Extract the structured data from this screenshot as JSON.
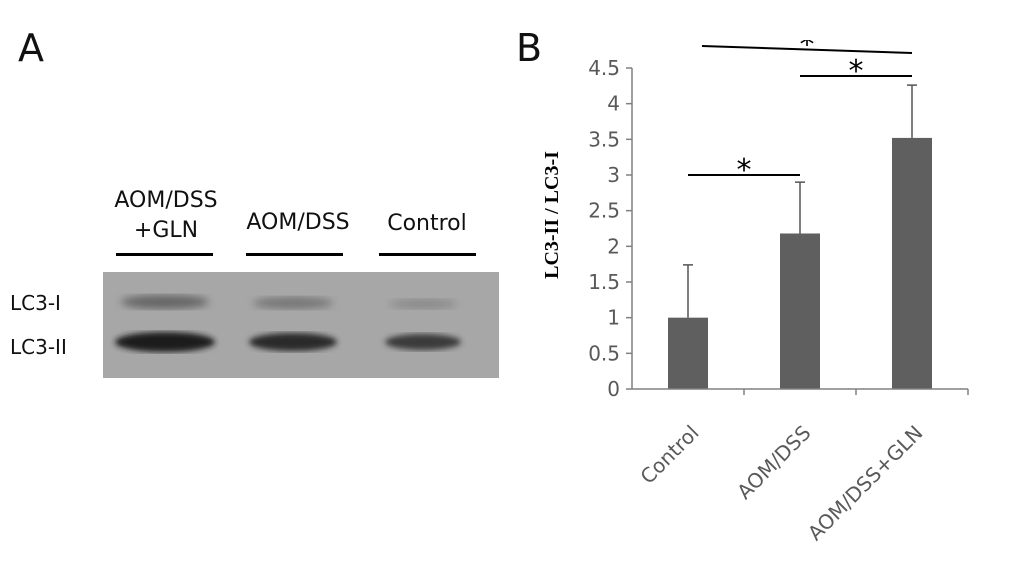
{
  "panel_a": {
    "letter": "A",
    "lanes": [
      {
        "line1": "AOM/DSS",
        "line2": "+GLN"
      },
      {
        "line1": "AOM/DSS",
        "line2": ""
      },
      {
        "line1": "Control",
        "line2": ""
      }
    ],
    "band_labels": [
      "LC3-I",
      "LC3-II"
    ]
  },
  "panel_b": {
    "letter": "B"
  },
  "chart_data": {
    "type": "bar",
    "categories": [
      "Control",
      "AOM/DSS",
      "AOM/DSS+GLN"
    ],
    "values": [
      1.0,
      2.18,
      3.52
    ],
    "errors": [
      0.74,
      0.72,
      0.74
    ],
    "ylabel": "LC3-II / LC3-I",
    "ylim": [
      0,
      4.5
    ],
    "yticks": [
      "0",
      "0.5",
      "1",
      "1.5",
      "2",
      "2.5",
      "3",
      "3.5",
      "4",
      "4.5"
    ],
    "significance": [
      {
        "from": 0,
        "to": 1,
        "label": "*"
      },
      {
        "from": 1,
        "to": 2,
        "label": "*"
      },
      {
        "from": 0,
        "to": 2,
        "label": "*"
      }
    ],
    "bar_color": "#5f5f5f",
    "axis_color": "#808080",
    "tick_label_color": "#595959",
    "grid": false
  }
}
